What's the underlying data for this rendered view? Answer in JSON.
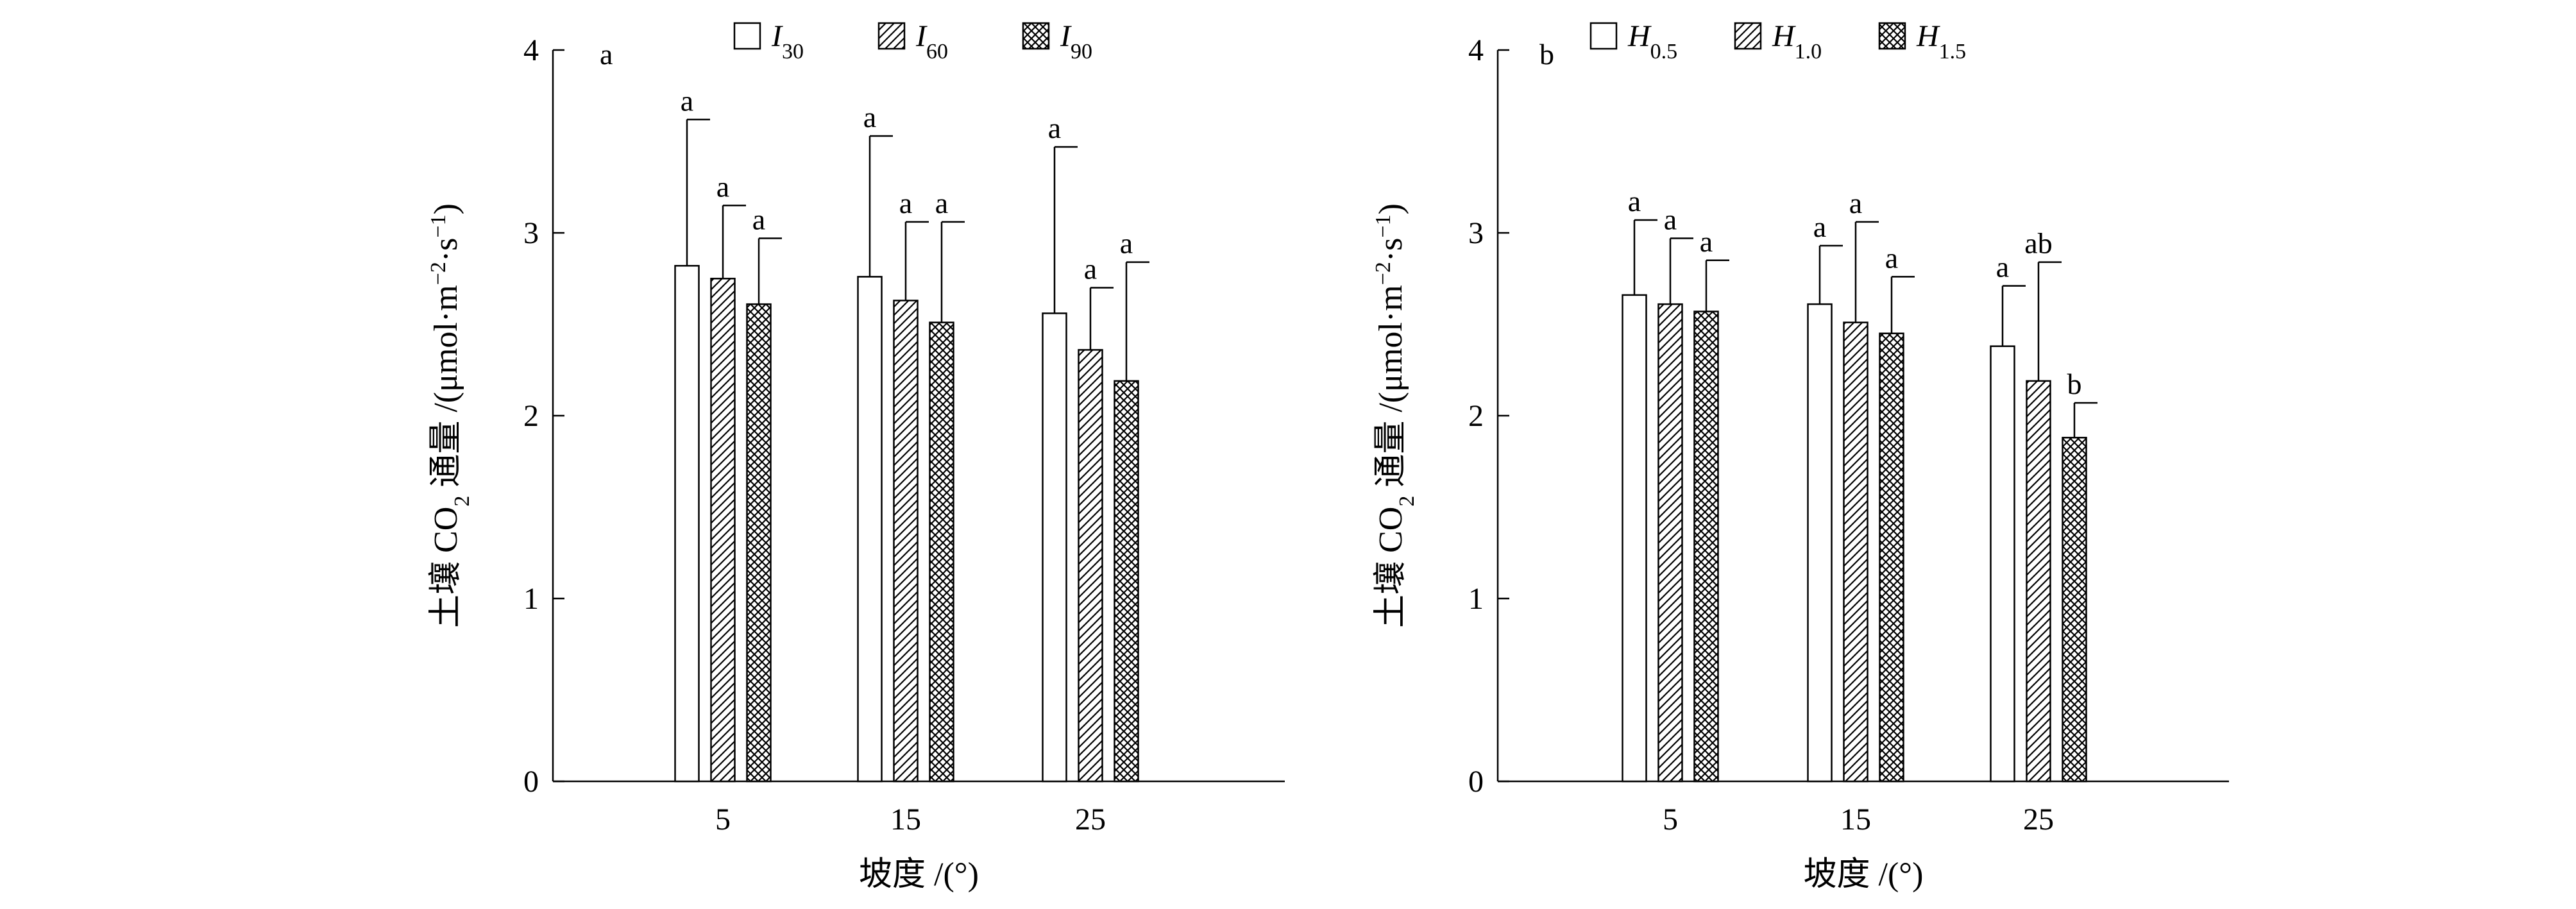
{
  "chart_data": [
    {
      "panel_label": "a",
      "type": "bar",
      "categories": [
        "5",
        "15",
        "25"
      ],
      "xlabel": "坡度 /(°)",
      "ylabel": {
        "pre": "土壤 CO",
        "sub": "2",
        "mid": " 通量 /(μmol·m",
        "sup1": "−2",
        "dot": "·s",
        "sup2": "−1",
        "post": ")"
      },
      "ylim": [
        0,
        4
      ],
      "yticks": [
        "0",
        "1",
        "2",
        "3",
        "4"
      ],
      "legend_position": "top-center",
      "series": [
        {
          "name": {
            "base": "I",
            "sub": "30"
          },
          "pattern": "open",
          "values": [
            2.82,
            2.76,
            2.56
          ],
          "errors": [
            0.8,
            0.77,
            0.91
          ],
          "letters": [
            "a",
            "a",
            "a"
          ]
        },
        {
          "name": {
            "base": "I",
            "sub": "60"
          },
          "pattern": "hatch",
          "values": [
            2.75,
            2.63,
            2.36
          ],
          "errors": [
            0.4,
            0.43,
            0.34
          ],
          "letters": [
            "a",
            "a",
            "a"
          ]
        },
        {
          "name": {
            "base": "I",
            "sub": "90"
          },
          "pattern": "crosshatch",
          "values": [
            2.61,
            2.51,
            2.19
          ],
          "errors": [
            0.36,
            0.55,
            0.65
          ],
          "letters": [
            "a",
            "a",
            "a"
          ]
        }
      ]
    },
    {
      "panel_label": "b",
      "type": "bar",
      "categories": [
        "5",
        "15",
        "25"
      ],
      "xlabel": "坡度 /(°)",
      "ylabel": {
        "pre": "土壤 CO",
        "sub": "2",
        "mid": " 通量 /(μmol·m",
        "sup1": "−2",
        "dot": "·s",
        "sup2": "−1",
        "post": ")"
      },
      "ylim": [
        0,
        4
      ],
      "yticks": [
        "0",
        "1",
        "2",
        "3",
        "4"
      ],
      "legend_position": "top-center",
      "series": [
        {
          "name": {
            "base": "H",
            "sub": "0.5"
          },
          "pattern": "open",
          "values": [
            2.66,
            2.61,
            2.38
          ],
          "errors": [
            0.41,
            0.32,
            0.33
          ],
          "letters": [
            "a",
            "a",
            "a"
          ]
        },
        {
          "name": {
            "base": "H",
            "sub": "1.0"
          },
          "pattern": "hatch",
          "values": [
            2.61,
            2.51,
            2.19
          ],
          "errors": [
            0.36,
            0.55,
            0.65
          ],
          "letters": [
            "a",
            "a",
            "ab"
          ]
        },
        {
          "name": {
            "base": "H",
            "sub": "1.5"
          },
          "pattern": "crosshatch",
          "values": [
            2.57,
            2.45,
            1.88
          ],
          "errors": [
            0.28,
            0.31,
            0.19
          ],
          "letters": [
            "a",
            "a",
            "b"
          ]
        }
      ]
    }
  ]
}
